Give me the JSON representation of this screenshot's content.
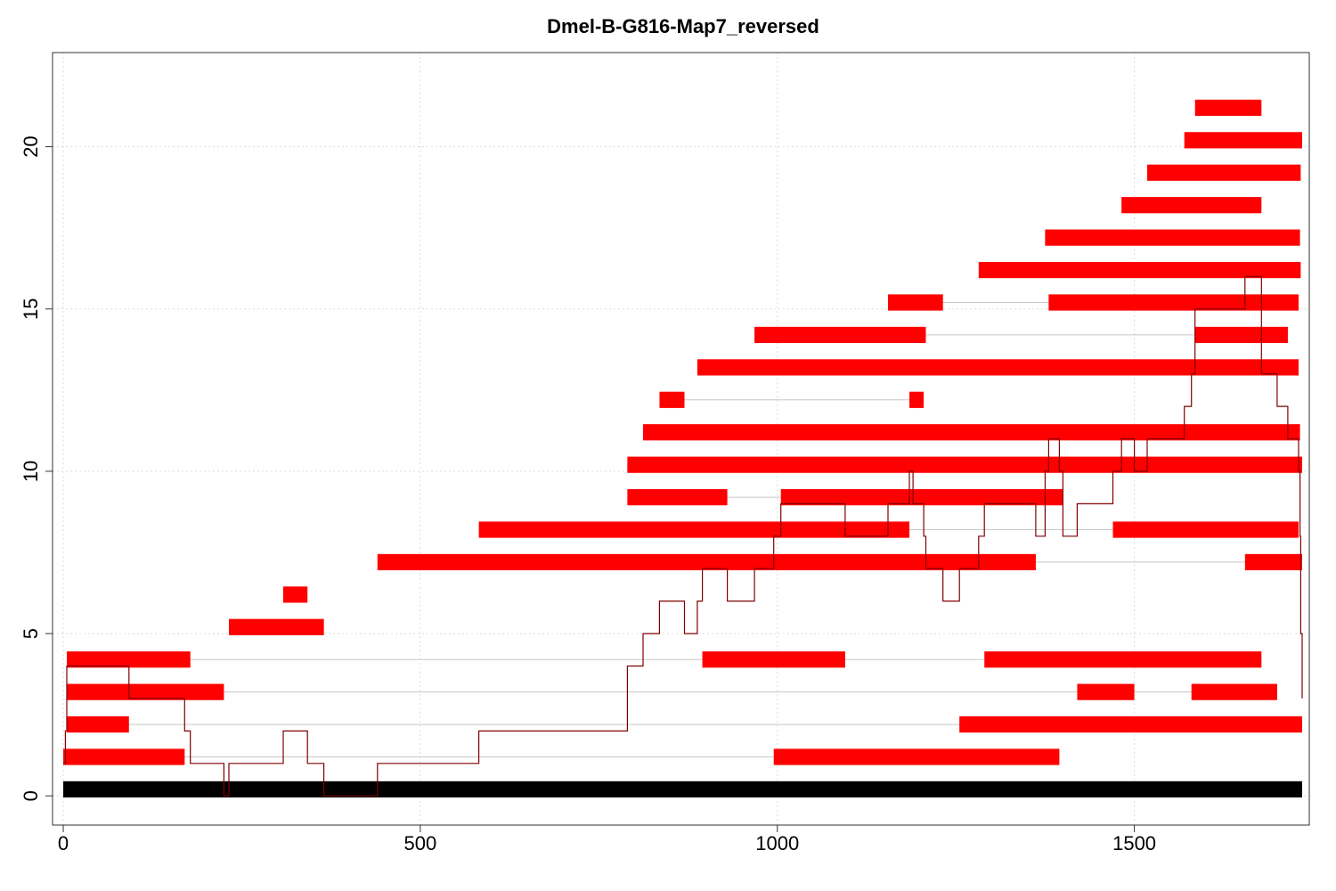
{
  "chart_data": {
    "type": "bar",
    "title": "Dmel-B-G816-Map7_reversed",
    "xlabel": "",
    "ylabel": "",
    "xlim": [
      -15,
      1745
    ],
    "ylim": [
      -0.9,
      22.9
    ],
    "x_ticks": [
      0,
      500,
      1000,
      1500
    ],
    "y_ticks": [
      0,
      5,
      10,
      15,
      20
    ],
    "grid": true,
    "colors": {
      "segment": "#ff0000",
      "baseline": "#000000",
      "connector": "#c8c8c8",
      "coverage": "#800000",
      "grid": "#dddddd"
    },
    "baseline": {
      "start": 0,
      "end": 1735,
      "y": 0.2
    },
    "reads": [
      {
        "y": 1.2,
        "segments": [
          [
            0,
            170
          ],
          [
            995,
            1395
          ]
        ]
      },
      {
        "y": 2.2,
        "segments": [
          [
            5,
            92
          ],
          [
            1255,
            1735
          ]
        ]
      },
      {
        "y": 3.2,
        "segments": [
          [
            5,
            225
          ],
          [
            1420,
            1500
          ],
          [
            1580,
            1700
          ]
        ]
      },
      {
        "y": 4.2,
        "segments": [
          [
            5,
            178
          ],
          [
            895,
            1095
          ],
          [
            1290,
            1678
          ]
        ]
      },
      {
        "y": 5.2,
        "segments": [
          [
            232,
            365
          ]
        ]
      },
      {
        "y": 6.2,
        "segments": [
          [
            308,
            342
          ]
        ]
      },
      {
        "y": 7.2,
        "segments": [
          [
            440,
            1362
          ],
          [
            1655,
            1735
          ]
        ]
      },
      {
        "y": 8.2,
        "segments": [
          [
            582,
            1185
          ],
          [
            1470,
            1730
          ]
        ]
      },
      {
        "y": 9.2,
        "segments": [
          [
            790,
            930
          ],
          [
            1005,
            1400
          ]
        ]
      },
      {
        "y": 10.2,
        "segments": [
          [
            790,
            1735
          ]
        ]
      },
      {
        "y": 11.2,
        "segments": [
          [
            812,
            1732
          ]
        ]
      },
      {
        "y": 12.2,
        "segments": [
          [
            835,
            870
          ],
          [
            1185,
            1205
          ]
        ]
      },
      {
        "y": 13.2,
        "segments": [
          [
            888,
            1730
          ]
        ]
      },
      {
        "y": 14.2,
        "segments": [
          [
            968,
            1208
          ],
          [
            1585,
            1715
          ]
        ]
      },
      {
        "y": 15.2,
        "segments": [
          [
            1155,
            1232
          ],
          [
            1380,
            1730
          ]
        ]
      },
      {
        "y": 16.2,
        "segments": [
          [
            1282,
            1733
          ]
        ]
      },
      {
        "y": 17.2,
        "segments": [
          [
            1375,
            1732
          ]
        ]
      },
      {
        "y": 18.2,
        "segments": [
          [
            1482,
            1678
          ]
        ]
      },
      {
        "y": 19.2,
        "segments": [
          [
            1518,
            1733
          ]
        ]
      },
      {
        "y": 20.2,
        "segments": [
          [
            1570,
            1735
          ]
        ]
      },
      {
        "y": 21.2,
        "segments": [
          [
            1585,
            1678
          ]
        ]
      }
    ],
    "coverage": [
      [
        0,
        1
      ],
      [
        3,
        1
      ],
      [
        3,
        2
      ],
      [
        5,
        2
      ],
      [
        5,
        3
      ],
      [
        5,
        4
      ],
      [
        92,
        4
      ],
      [
        92,
        3
      ],
      [
        170,
        3
      ],
      [
        170,
        2
      ],
      [
        178,
        2
      ],
      [
        178,
        1
      ],
      [
        225,
        1
      ],
      [
        225,
        0
      ],
      [
        232,
        0
      ],
      [
        232,
        1
      ],
      [
        308,
        1
      ],
      [
        308,
        2
      ],
      [
        342,
        2
      ],
      [
        342,
        1
      ],
      [
        365,
        1
      ],
      [
        365,
        0
      ],
      [
        440,
        0
      ],
      [
        440,
        1
      ],
      [
        582,
        1
      ],
      [
        582,
        2
      ],
      [
        790,
        2
      ],
      [
        790,
        4
      ],
      [
        812,
        4
      ],
      [
        812,
        5
      ],
      [
        835,
        5
      ],
      [
        835,
        6
      ],
      [
        870,
        6
      ],
      [
        870,
        5
      ],
      [
        888,
        5
      ],
      [
        888,
        6
      ],
      [
        895,
        6
      ],
      [
        895,
        7
      ],
      [
        930,
        7
      ],
      [
        930,
        6
      ],
      [
        968,
        6
      ],
      [
        968,
        7
      ],
      [
        995,
        7
      ],
      [
        995,
        8
      ],
      [
        1005,
        8
      ],
      [
        1005,
        9
      ],
      [
        1095,
        9
      ],
      [
        1095,
        8
      ],
      [
        1155,
        8
      ],
      [
        1155,
        9
      ],
      [
        1185,
        9
      ],
      [
        1185,
        10
      ],
      [
        1190,
        10
      ],
      [
        1190,
        9
      ],
      [
        1205,
        9
      ],
      [
        1205,
        8
      ],
      [
        1208,
        8
      ],
      [
        1208,
        7
      ],
      [
        1232,
        7
      ],
      [
        1232,
        6
      ],
      [
        1255,
        6
      ],
      [
        1255,
        7
      ],
      [
        1282,
        7
      ],
      [
        1282,
        8
      ],
      [
        1290,
        8
      ],
      [
        1290,
        9
      ],
      [
        1362,
        9
      ],
      [
        1362,
        8
      ],
      [
        1375,
        8
      ],
      [
        1375,
        10
      ],
      [
        1380,
        10
      ],
      [
        1380,
        11
      ],
      [
        1395,
        11
      ],
      [
        1395,
        10
      ],
      [
        1400,
        10
      ],
      [
        1400,
        8
      ],
      [
        1420,
        8
      ],
      [
        1420,
        9
      ],
      [
        1470,
        9
      ],
      [
        1470,
        10
      ],
      [
        1482,
        10
      ],
      [
        1482,
        11
      ],
      [
        1500,
        11
      ],
      [
        1500,
        10
      ],
      [
        1518,
        10
      ],
      [
        1518,
        11
      ],
      [
        1570,
        11
      ],
      [
        1570,
        12
      ],
      [
        1580,
        12
      ],
      [
        1580,
        13
      ],
      [
        1585,
        13
      ],
      [
        1585,
        15
      ],
      [
        1655,
        15
      ],
      [
        1655,
        16
      ],
      [
        1678,
        16
      ],
      [
        1678,
        13
      ],
      [
        1700,
        13
      ],
      [
        1700,
        12
      ],
      [
        1715,
        12
      ],
      [
        1715,
        11
      ],
      [
        1730,
        11
      ],
      [
        1730,
        10
      ],
      [
        1732,
        10
      ],
      [
        1732,
        8
      ],
      [
        1733,
        8
      ],
      [
        1733,
        5
      ],
      [
        1735,
        5
      ],
      [
        1735,
        3
      ]
    ]
  }
}
